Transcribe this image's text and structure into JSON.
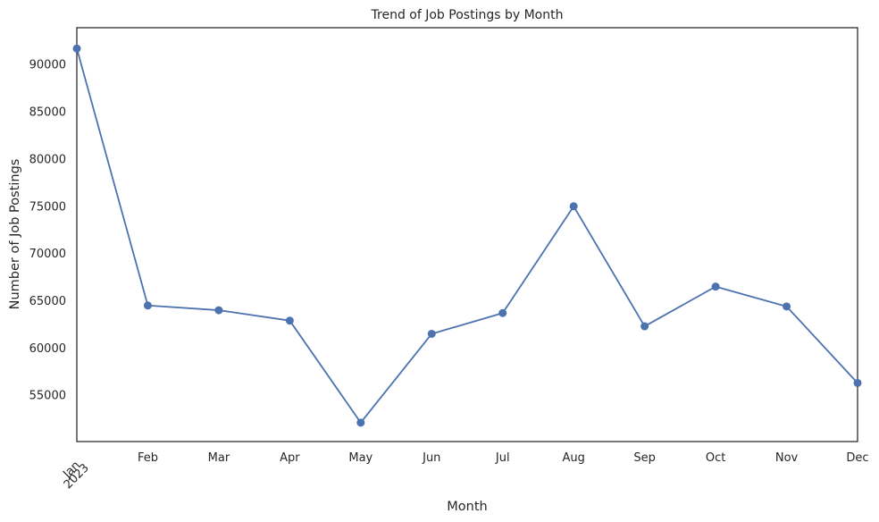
{
  "chart_data": {
    "type": "line",
    "title": "Trend of Job Postings by Month",
    "xlabel": "Month",
    "ylabel": "Number of Job Postings",
    "x": [
      "Jan",
      "Feb",
      "Mar",
      "Apr",
      "May",
      "Jun",
      "Jul",
      "Aug",
      "Sep",
      "Oct",
      "Nov",
      "Dec"
    ],
    "x_tick_labels": [
      {
        "label": "Jan",
        "sublabel": "2023",
        "rotated": true
      },
      {
        "label": "Feb"
      },
      {
        "label": "Mar"
      },
      {
        "label": "Apr"
      },
      {
        "label": "May"
      },
      {
        "label": "Jun"
      },
      {
        "label": "Jul"
      },
      {
        "label": "Aug"
      },
      {
        "label": "Sep"
      },
      {
        "label": "Oct"
      },
      {
        "label": "Nov"
      },
      {
        "label": "Dec"
      }
    ],
    "series": [
      {
        "values": [
          91700,
          64500,
          64000,
          62900,
          52100,
          61500,
          63700,
          75000,
          62300,
          66500,
          64400,
          56300
        ]
      }
    ],
    "ylim": [
      50100,
      93900
    ],
    "yticks": [
      55000,
      60000,
      65000,
      70000,
      75000,
      80000,
      85000,
      90000
    ],
    "grid": false,
    "line_color": "#4c72b0",
    "text_color": "#262626"
  }
}
